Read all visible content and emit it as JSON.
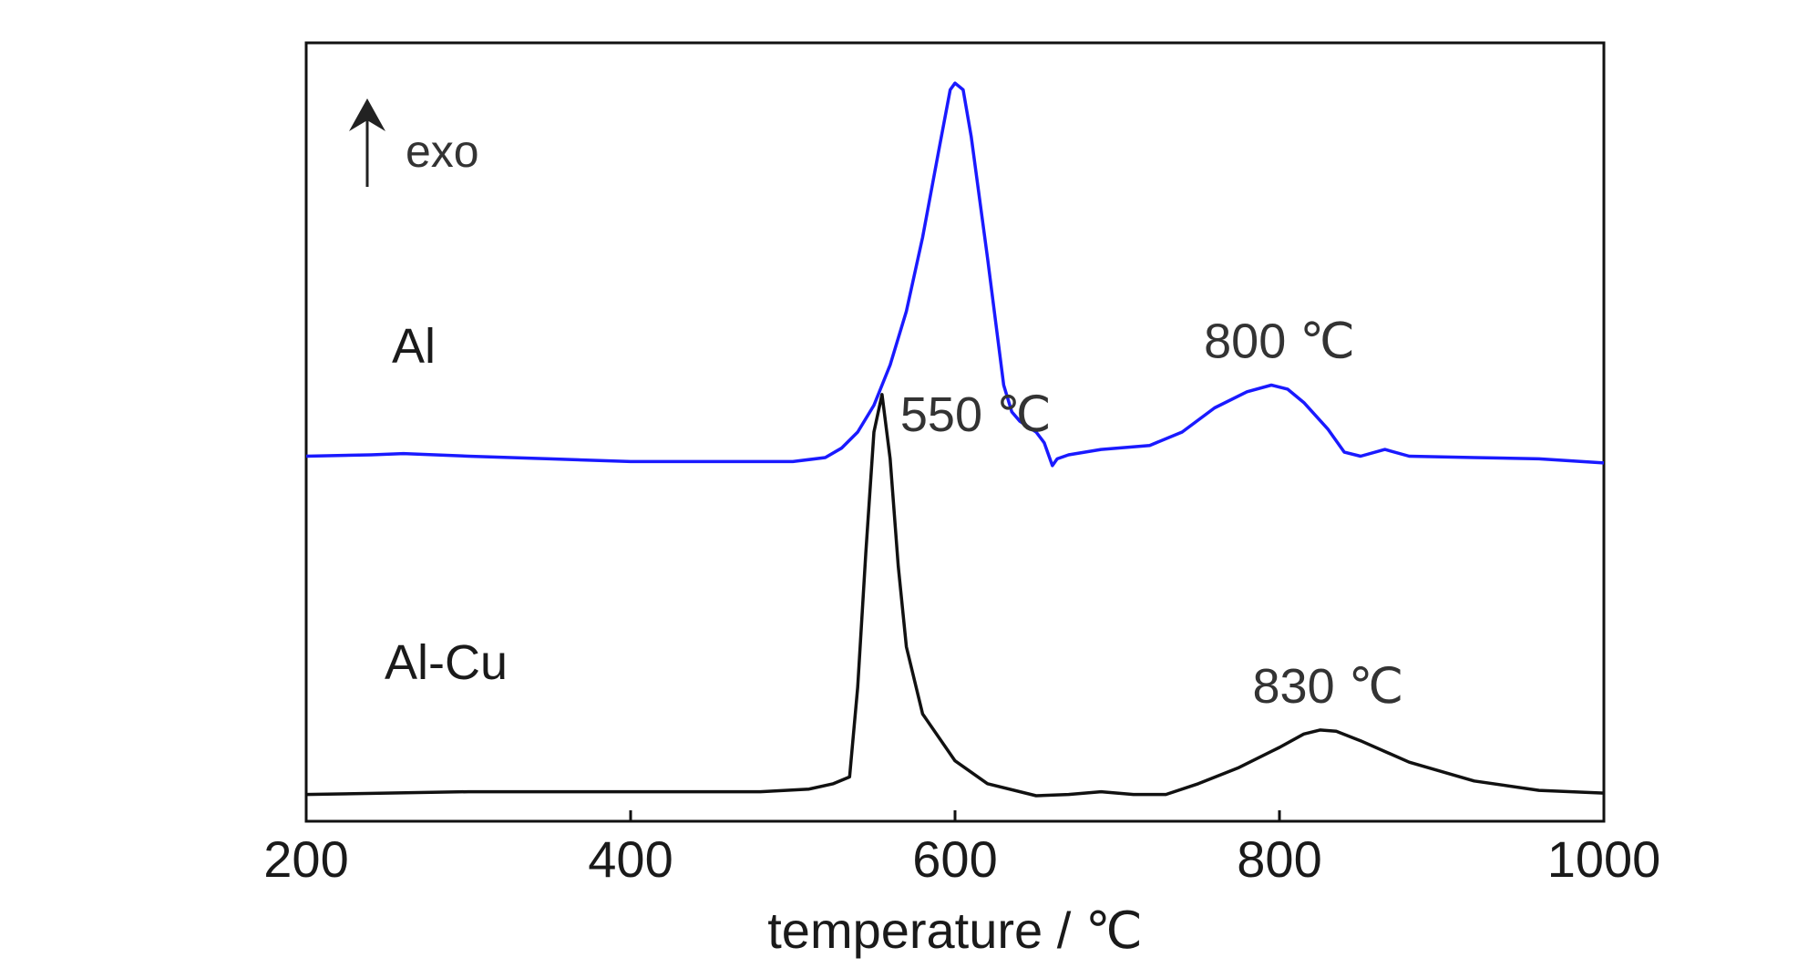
{
  "chart_data": {
    "type": "line",
    "title": "",
    "xlabel": "temperature / ℃",
    "ylabel": "",
    "xlim": [
      200,
      1000
    ],
    "ylim": [
      -0.2,
      5.6
    ],
    "x_ticks": [
      200,
      400,
      600,
      800,
      1000
    ],
    "grid": false,
    "legend": "none",
    "exo_indicator": "exo",
    "series": [
      {
        "name": "Al",
        "color": "#1a1aff",
        "points": [
          [
            200,
            2.52
          ],
          [
            240,
            2.53
          ],
          [
            260,
            2.54
          ],
          [
            300,
            2.52
          ],
          [
            350,
            2.5
          ],
          [
            400,
            2.48
          ],
          [
            450,
            2.48
          ],
          [
            500,
            2.48
          ],
          [
            520,
            2.51
          ],
          [
            530,
            2.58
          ],
          [
            540,
            2.7
          ],
          [
            550,
            2.9
          ],
          [
            560,
            3.2
          ],
          [
            570,
            3.6
          ],
          [
            580,
            4.15
          ],
          [
            590,
            4.8
          ],
          [
            597,
            5.25
          ],
          [
            600,
            5.3
          ],
          [
            605,
            5.25
          ],
          [
            610,
            4.9
          ],
          [
            620,
            4.0
          ],
          [
            630,
            3.05
          ],
          [
            635,
            2.85
          ],
          [
            640,
            2.78
          ],
          [
            650,
            2.7
          ],
          [
            655,
            2.62
          ],
          [
            660,
            2.45
          ],
          [
            663,
            2.5
          ],
          [
            670,
            2.53
          ],
          [
            690,
            2.57
          ],
          [
            720,
            2.6
          ],
          [
            740,
            2.7
          ],
          [
            760,
            2.88
          ],
          [
            780,
            3.0
          ],
          [
            795,
            3.05
          ],
          [
            805,
            3.02
          ],
          [
            815,
            2.92
          ],
          [
            830,
            2.72
          ],
          [
            840,
            2.55
          ],
          [
            850,
            2.52
          ],
          [
            865,
            2.57
          ],
          [
            880,
            2.52
          ],
          [
            920,
            2.51
          ],
          [
            960,
            2.5
          ],
          [
            1000,
            2.47
          ]
        ]
      },
      {
        "name": "Al-Cu",
        "color": "#111111",
        "points": [
          [
            200,
            0.0
          ],
          [
            300,
            0.02
          ],
          [
            400,
            0.02
          ],
          [
            480,
            0.02
          ],
          [
            510,
            0.04
          ],
          [
            525,
            0.08
          ],
          [
            535,
            0.13
          ],
          [
            540,
            0.8
          ],
          [
            545,
            1.8
          ],
          [
            550,
            2.7
          ],
          [
            555,
            2.98
          ],
          [
            560,
            2.5
          ],
          [
            565,
            1.7
          ],
          [
            570,
            1.1
          ],
          [
            580,
            0.6
          ],
          [
            600,
            0.25
          ],
          [
            620,
            0.08
          ],
          [
            650,
            -0.01
          ],
          [
            670,
            0.0
          ],
          [
            690,
            0.02
          ],
          [
            710,
            0.0
          ],
          [
            730,
            0.0
          ],
          [
            750,
            0.08
          ],
          [
            775,
            0.2
          ],
          [
            800,
            0.35
          ],
          [
            815,
            0.45
          ],
          [
            825,
            0.48
          ],
          [
            835,
            0.47
          ],
          [
            850,
            0.4
          ],
          [
            880,
            0.24
          ],
          [
            920,
            0.1
          ],
          [
            960,
            0.03
          ],
          [
            1000,
            0.01
          ]
        ]
      }
    ],
    "annotations": [
      {
        "text": "550 ℃",
        "x": 555,
        "y": 2.98
      },
      {
        "text": "800 ℃",
        "x": 800,
        "y": 3.05
      },
      {
        "text": "830 ℃",
        "x": 830,
        "y": 0.48
      }
    ]
  }
}
